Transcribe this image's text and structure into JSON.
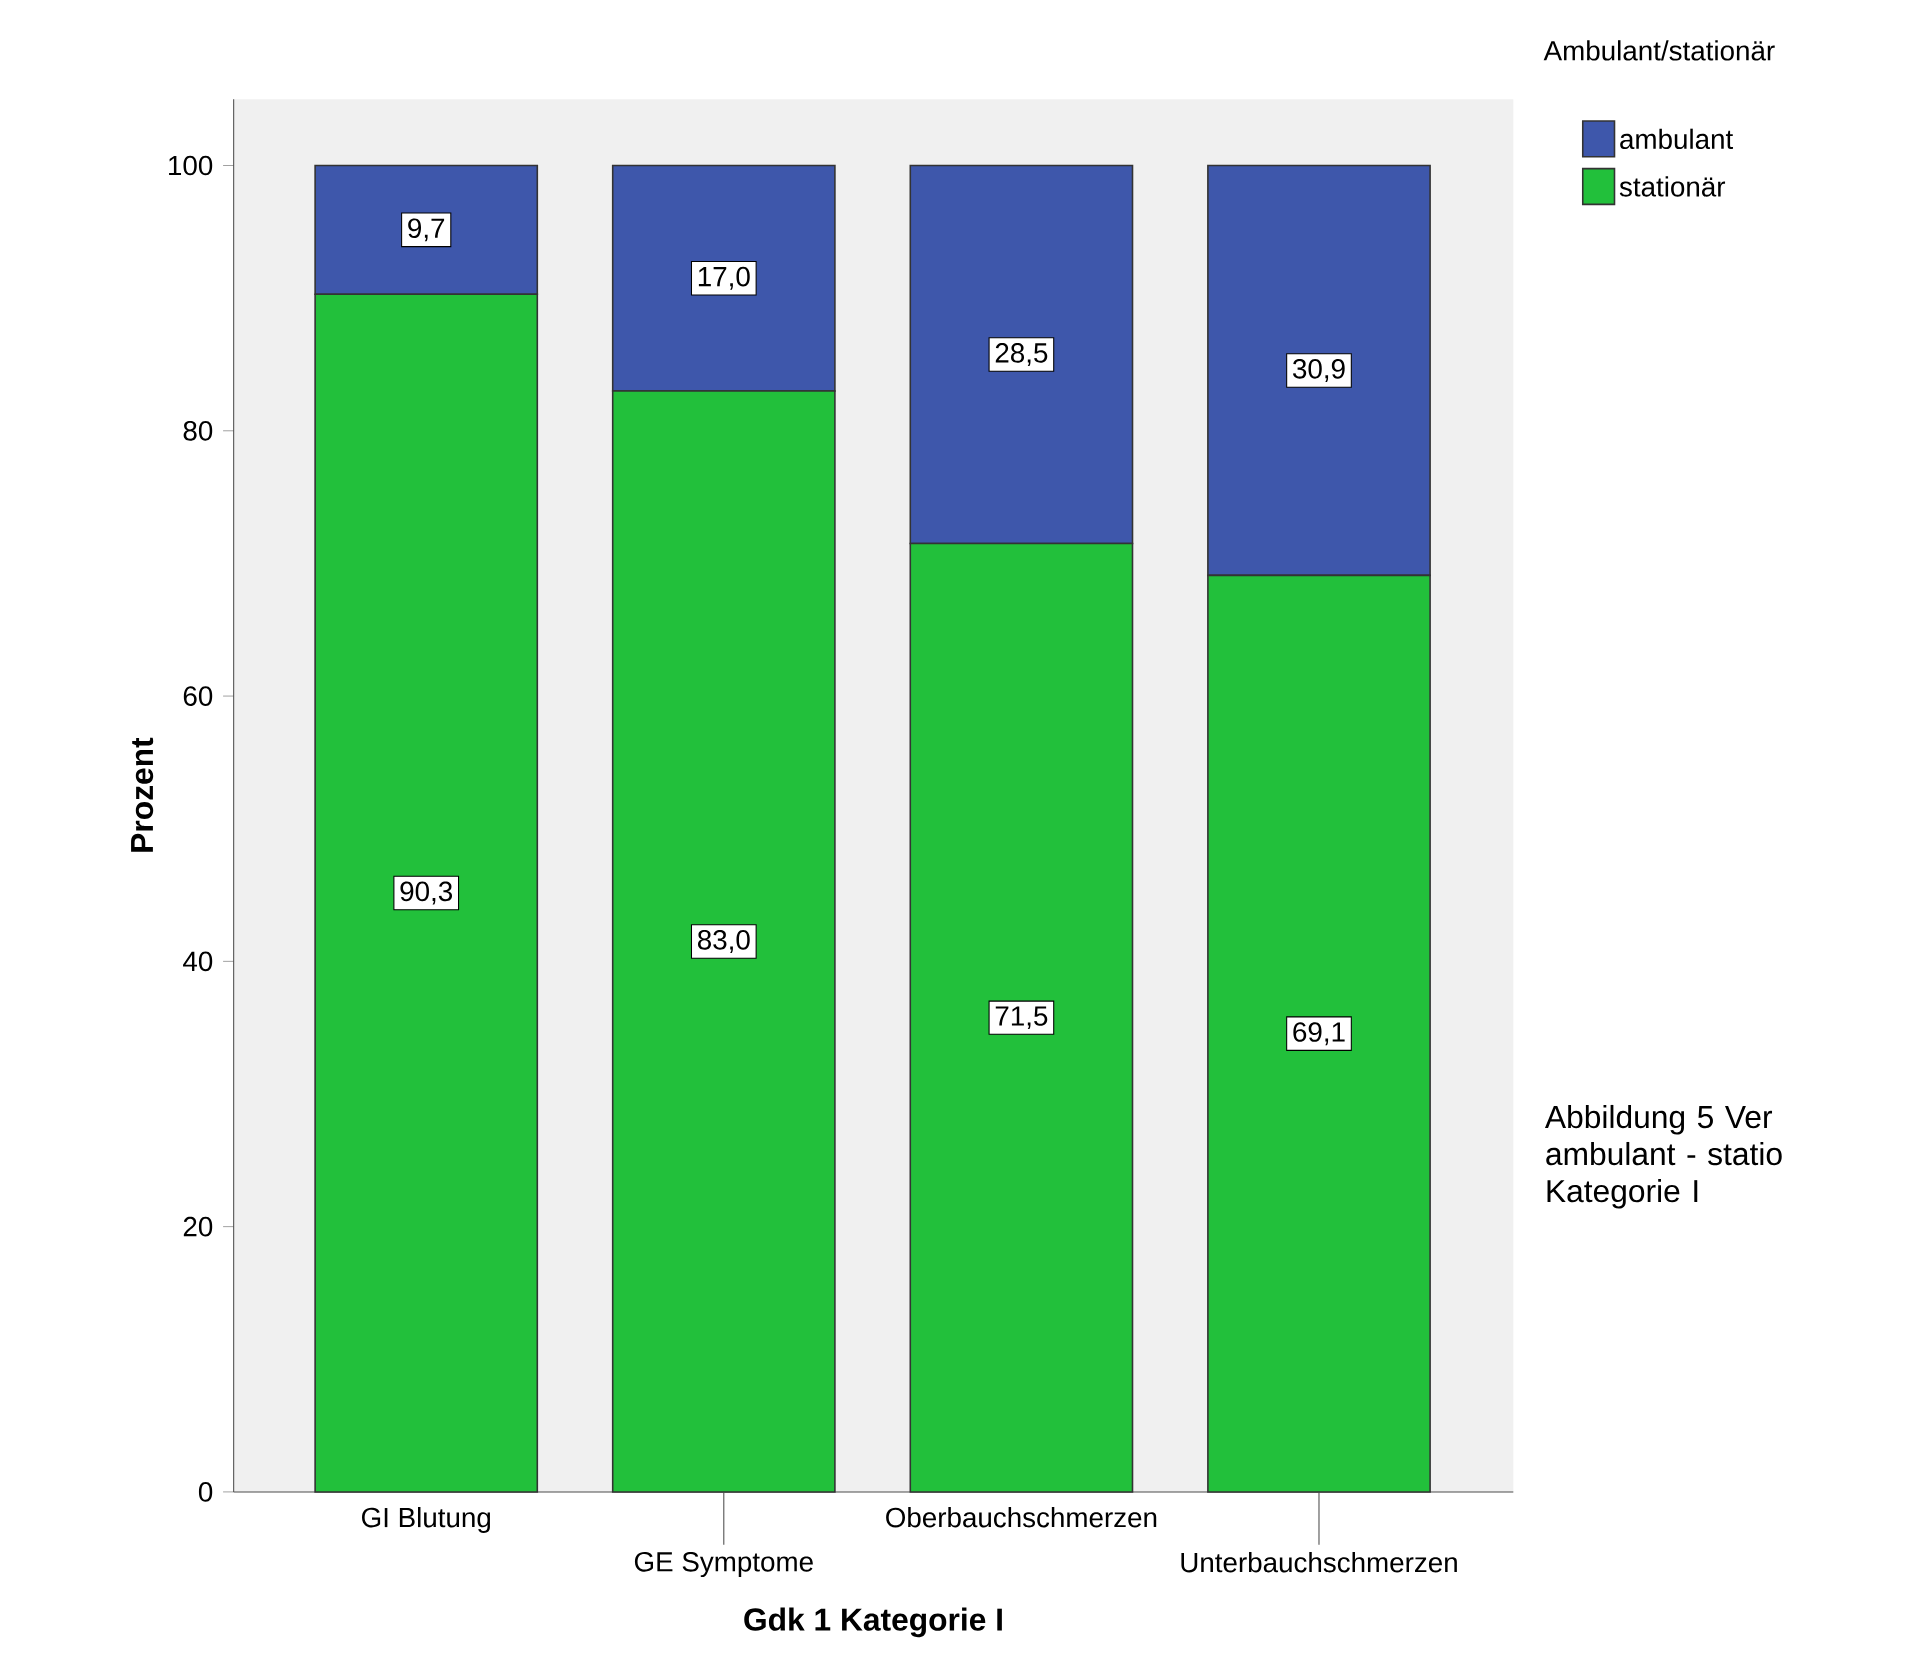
{
  "chart_data": {
    "type": "bar",
    "stacked": true,
    "xlabel": "Gdk 1 Kategorie I",
    "ylabel": "Prozent",
    "legend_title": "Ambulant/stationär",
    "legend": "top right",
    "categories": [
      "GI Blutung",
      "GE Symptome",
      "Oberbauchschmerzen",
      "Unterbauchschmerzen"
    ],
    "series": [
      {
        "name": "stationär",
        "color": "#22c03b",
        "values": [
          90.3,
          83.0,
          71.5,
          69.1
        ],
        "value_labels": [
          "90,3",
          "83,0",
          "71,5",
          "69,1"
        ]
      },
      {
        "name": "ambulant",
        "color": "#3e57ab",
        "values": [
          9.7,
          17.0,
          28.5,
          30.9
        ],
        "value_labels": [
          "9,7",
          "17,0",
          "28,5",
          "30,9"
        ]
      }
    ],
    "ylim": [
      0,
      105
    ],
    "yticks": [
      0,
      20,
      40,
      60,
      80,
      100
    ],
    "grid": false,
    "annotations": [
      "Abbildung 5 Ver ambulant - statio Kategorie I"
    ]
  }
}
